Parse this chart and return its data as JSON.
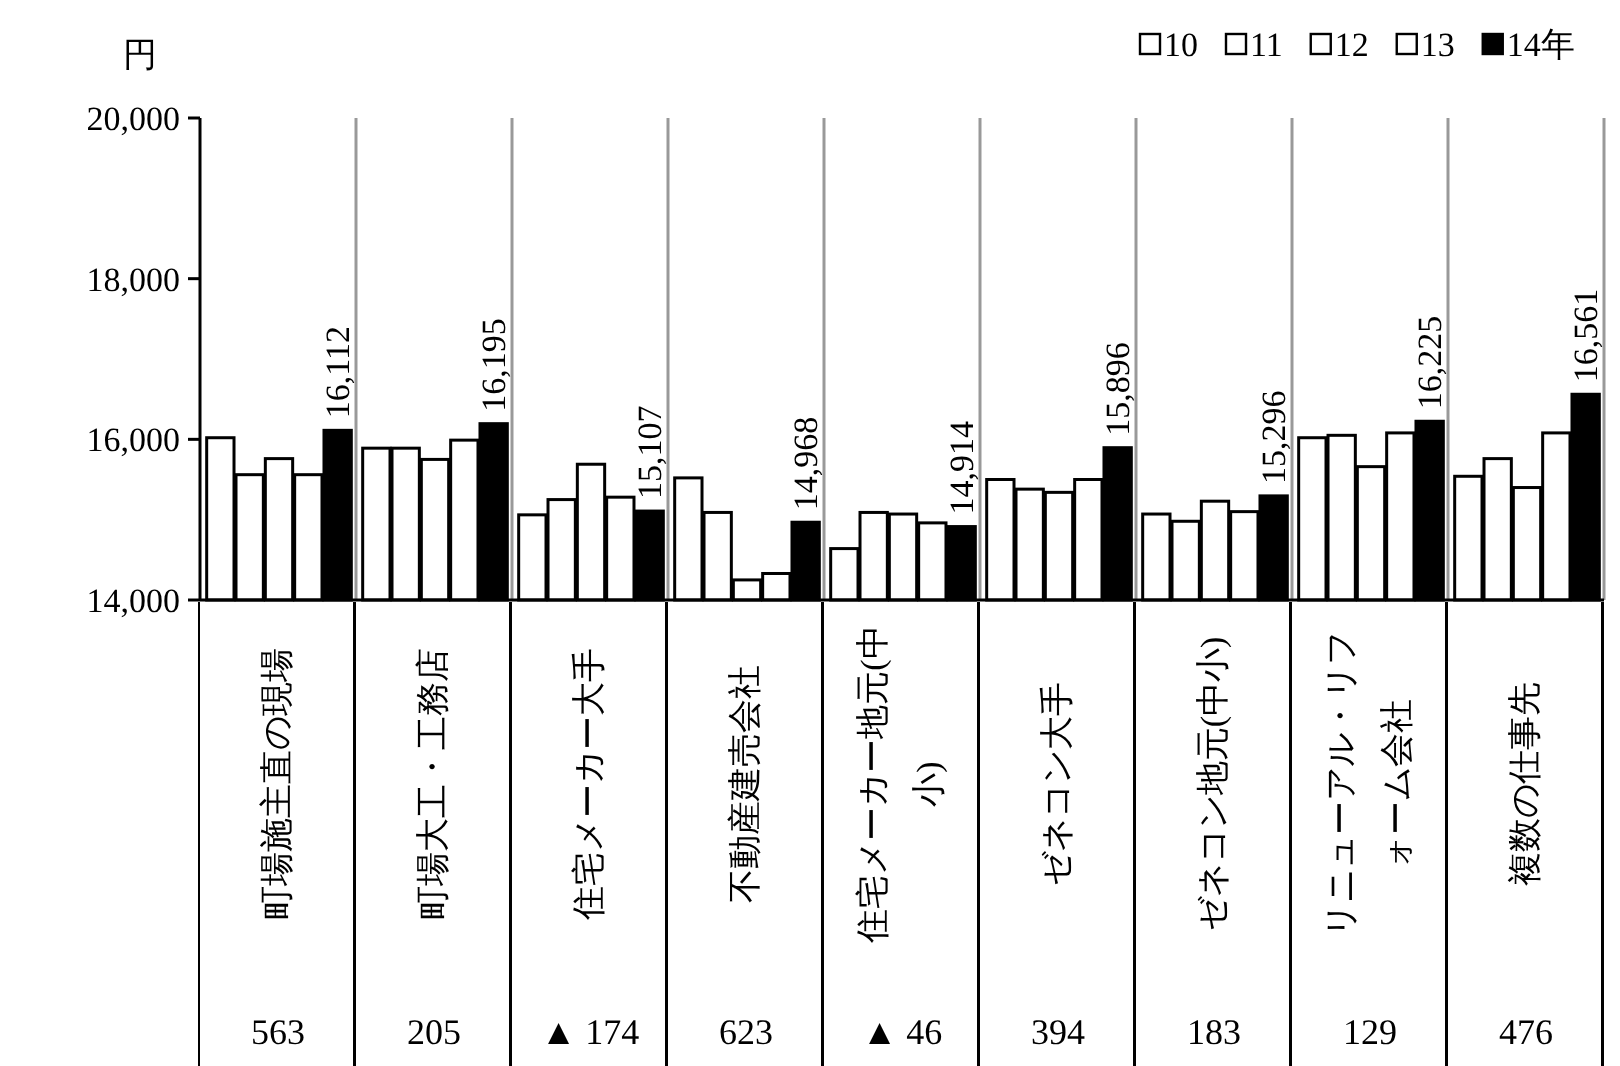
{
  "chart_data": {
    "type": "bar",
    "ylabel": "円",
    "legend": "top right",
    "categories": [
      "町場施主直の現場",
      "町場大工・工務店",
      "住宅メーカー大手",
      "不動産建売会社",
      "住宅メーカー地元(中小)",
      "ゼネコン大手",
      "ゼネコン地元(中小)",
      "リニューアル・リフォーム会社",
      "複数の仕事先"
    ],
    "series": [
      {
        "name": "10",
        "color": "#ffffff",
        "values": [
          16020,
          15890,
          15060,
          15520,
          14640,
          15500,
          15070,
          16020,
          15540
        ]
      },
      {
        "name": "11",
        "color": "#ffffff",
        "values": [
          15560,
          15890,
          15250,
          15090,
          15090,
          15380,
          14980,
          16050,
          15760
        ]
      },
      {
        "name": "12",
        "color": "#ffffff",
        "values": [
          15760,
          15750,
          15690,
          14250,
          15070,
          15340,
          15230,
          15660,
          15400
        ]
      },
      {
        "name": "13",
        "color": "#ffffff",
        "values": [
          15560,
          15990,
          15280,
          14330,
          14960,
          15500,
          15100,
          16080,
          16080
        ]
      },
      {
        "name": "14年",
        "color": "#000000",
        "values": [
          16112,
          16195,
          15107,
          14968,
          14914,
          15896,
          15296,
          16225,
          16561
        ],
        "value_labels": [
          "16,112",
          "16,195",
          "15,107",
          "14,968",
          "14,914",
          "15,896",
          "15,296",
          "16,225",
          "16,561"
        ]
      }
    ],
    "ylim": [
      14000,
      20000
    ],
    "yticks": [
      {
        "value": 14000,
        "label": "14,000"
      },
      {
        "value": 16000,
        "label": "16,000"
      },
      {
        "value": 18000,
        "label": "18,000"
      },
      {
        "value": 20000,
        "label": "20,000"
      }
    ],
    "annotations": [
      "563",
      "205",
      "▲ 174",
      "623",
      "▲ 46",
      "394",
      "183",
      "129",
      "476"
    ]
  }
}
